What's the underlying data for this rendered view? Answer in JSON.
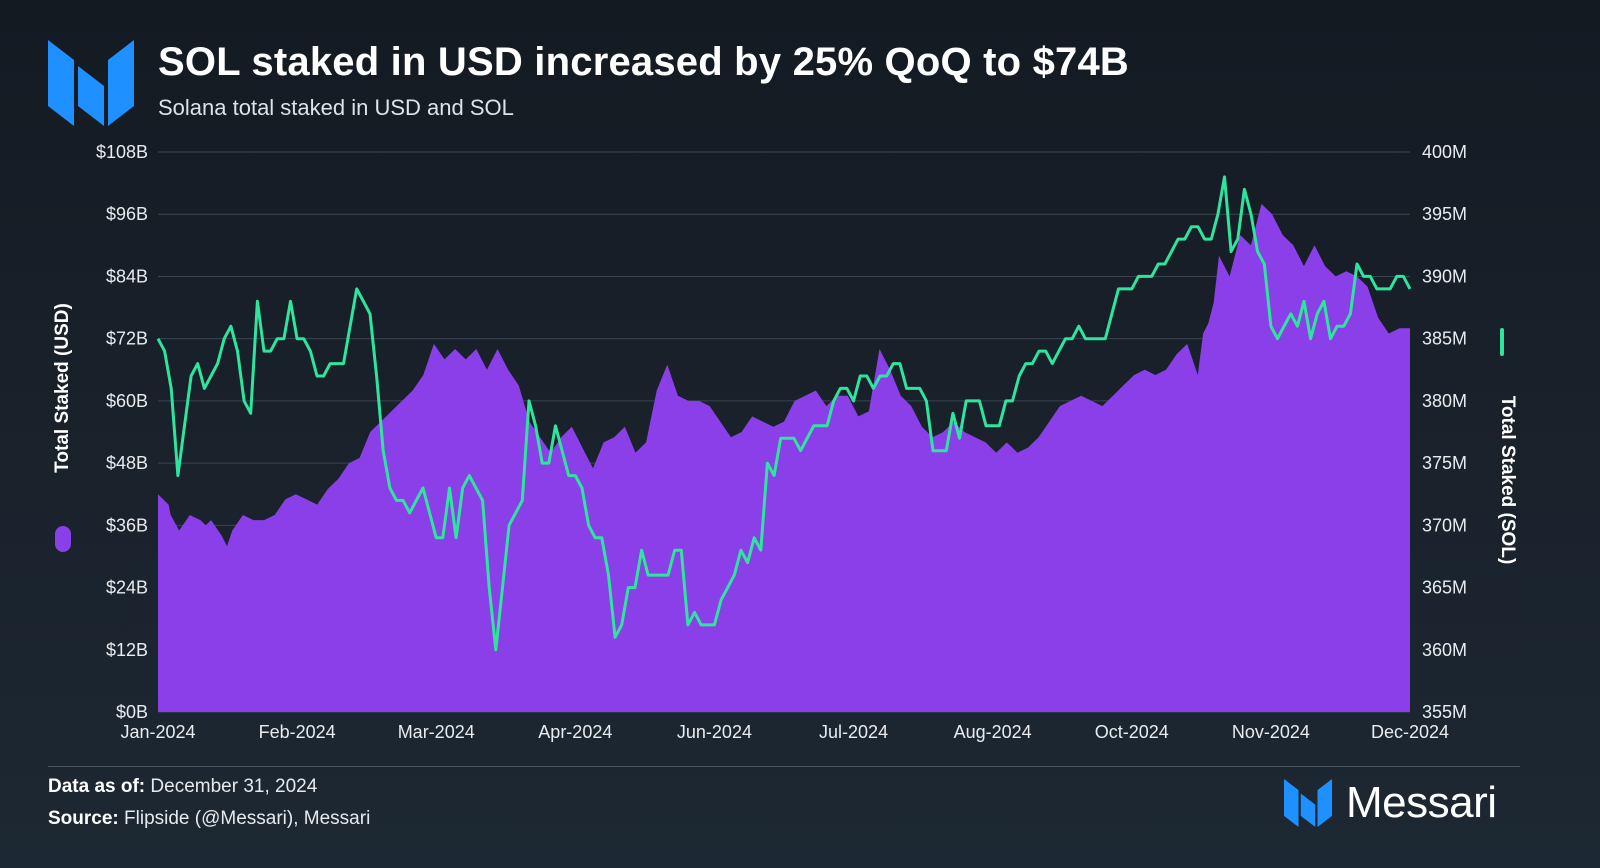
{
  "header": {
    "title": "SOL staked in USD increased by 25% QoQ to $74B",
    "subtitle": "Solana total staked in USD and SOL"
  },
  "footer": {
    "data_as_of_label": "Data as of:",
    "data_as_of_value": "December 31, 2024",
    "source_label": "Source:",
    "source_value": "Flipside (@Messari), Messari",
    "brand": "Messari"
  },
  "colors": {
    "background": "#161d26",
    "usd_area": "#8a3fe8",
    "sol_line": "#2ee59d",
    "brand_blue": "#1e90ff"
  },
  "icons": [
    "messari-logo-icon"
  ],
  "chart_data": {
    "type": "area+line",
    "title": "SOL staked in USD increased by 25% QoQ to $74B",
    "subtitle": "Solana total staked in USD and SOL",
    "x_ticks": [
      "Jan-2024",
      "Feb-2024",
      "Mar-2024",
      "Apr-2024",
      "Jun-2024",
      "Jul-2024",
      "Aug-2024",
      "Oct-2024",
      "Nov-2024",
      "Dec-2024"
    ],
    "y_left": {
      "label": "Total Staked (USD)",
      "ticks": [
        "$0B",
        "$12B",
        "$24B",
        "$36B",
        "$48B",
        "$60B",
        "$72B",
        "$84B",
        "$96B",
        "$108B"
      ],
      "range": [
        0,
        108
      ],
      "unit": "B USD"
    },
    "y_right": {
      "label": "Total Staked (SOL)",
      "ticks": [
        "355M",
        "360M",
        "365M",
        "370M",
        "375M",
        "380M",
        "385M",
        "390M",
        "395M",
        "400M"
      ],
      "range": [
        355,
        400
      ],
      "unit": "M SOL"
    },
    "grid": true,
    "legend": "axis-labels",
    "series": [
      {
        "name": "Total Staked (USD)",
        "axis": "left",
        "style": "area",
        "color": "#8a3fe8",
        "points": [
          [
            0,
            42
          ],
          [
            0.01,
            40
          ],
          [
            0.012,
            38
          ],
          [
            0.02,
            35
          ],
          [
            0.03,
            38
          ],
          [
            0.04,
            37
          ],
          [
            0.045,
            36
          ],
          [
            0.05,
            37
          ],
          [
            0.06,
            34
          ],
          [
            0.065,
            32
          ],
          [
            0.07,
            35
          ],
          [
            0.08,
            38
          ],
          [
            0.09,
            37
          ],
          [
            0.1,
            37
          ],
          [
            0.11,
            38
          ],
          [
            0.12,
            41
          ],
          [
            0.13,
            42
          ],
          [
            0.14,
            41
          ],
          [
            0.15,
            40
          ],
          [
            0.16,
            43
          ],
          [
            0.17,
            45
          ],
          [
            0.18,
            48
          ],
          [
            0.19,
            49
          ],
          [
            0.2,
            54
          ],
          [
            0.22,
            58
          ],
          [
            0.24,
            62
          ],
          [
            0.25,
            65
          ],
          [
            0.26,
            71
          ],
          [
            0.27,
            68
          ],
          [
            0.28,
            70
          ],
          [
            0.29,
            68
          ],
          [
            0.3,
            70
          ],
          [
            0.31,
            66
          ],
          [
            0.32,
            70
          ],
          [
            0.33,
            66
          ],
          [
            0.34,
            63
          ],
          [
            0.35,
            56
          ],
          [
            0.36,
            53
          ],
          [
            0.37,
            50
          ],
          [
            0.38,
            53
          ],
          [
            0.39,
            55
          ],
          [
            0.4,
            51
          ],
          [
            0.41,
            47
          ],
          [
            0.42,
            52
          ],
          [
            0.43,
            53
          ],
          [
            0.44,
            55
          ],
          [
            0.45,
            50
          ],
          [
            0.46,
            52
          ],
          [
            0.47,
            62
          ],
          [
            0.48,
            67
          ],
          [
            0.49,
            61
          ],
          [
            0.5,
            60
          ],
          [
            0.51,
            60
          ],
          [
            0.52,
            59
          ],
          [
            0.53,
            56
          ],
          [
            0.54,
            53
          ],
          [
            0.55,
            54
          ],
          [
            0.56,
            57
          ],
          [
            0.57,
            56
          ],
          [
            0.58,
            55
          ],
          [
            0.59,
            56
          ],
          [
            0.6,
            60
          ],
          [
            0.61,
            61
          ],
          [
            0.62,
            62
          ],
          [
            0.63,
            59
          ],
          [
            0.64,
            61
          ],
          [
            0.65,
            61
          ],
          [
            0.66,
            57
          ],
          [
            0.67,
            58
          ],
          [
            0.68,
            70
          ],
          [
            0.69,
            66
          ],
          [
            0.7,
            61
          ],
          [
            0.71,
            59
          ],
          [
            0.72,
            55
          ],
          [
            0.73,
            53
          ],
          [
            0.74,
            54
          ],
          [
            0.75,
            56
          ],
          [
            0.76,
            54
          ],
          [
            0.77,
            53
          ],
          [
            0.78,
            52
          ],
          [
            0.79,
            50
          ],
          [
            0.8,
            52
          ],
          [
            0.81,
            50
          ],
          [
            0.82,
            51
          ],
          [
            0.83,
            53
          ],
          [
            0.84,
            56
          ],
          [
            0.85,
            59
          ],
          [
            0.86,
            60
          ],
          [
            0.87,
            61
          ],
          [
            0.88,
            60
          ],
          [
            0.89,
            59
          ],
          [
            0.9,
            61
          ],
          [
            0.91,
            63
          ],
          [
            0.92,
            65
          ],
          [
            0.93,
            66
          ],
          [
            0.94,
            65
          ],
          [
            0.95,
            66
          ],
          [
            0.96,
            69
          ],
          [
            0.97,
            71
          ],
          [
            0.975,
            68
          ],
          [
            0.98,
            65
          ],
          [
            0.985,
            73
          ],
          [
            0.99,
            75
          ],
          [
            0.995,
            79
          ],
          [
            1,
            88
          ]
        ],
        "points_note": "x is fraction of time axis; continues in points_tail",
        "points_tail": [
          [
            1.005,
            86
          ],
          [
            1.01,
            84
          ],
          [
            1.02,
            92
          ],
          [
            1.03,
            90
          ],
          [
            1.04,
            98
          ],
          [
            1.05,
            96
          ],
          [
            1.06,
            92
          ],
          [
            1.07,
            90
          ],
          [
            1.08,
            86
          ],
          [
            1.09,
            90
          ],
          [
            1.1,
            86
          ],
          [
            1.11,
            84
          ],
          [
            1.12,
            85
          ],
          [
            1.13,
            84
          ],
          [
            1.14,
            82
          ],
          [
            1.15,
            76
          ],
          [
            1.16,
            73
          ],
          [
            1.17,
            74
          ],
          [
            1.18,
            74
          ]
        ]
      },
      {
        "name": "Total Staked (SOL)",
        "axis": "right",
        "style": "line",
        "color": "#2ee59d"
      }
    ]
  }
}
